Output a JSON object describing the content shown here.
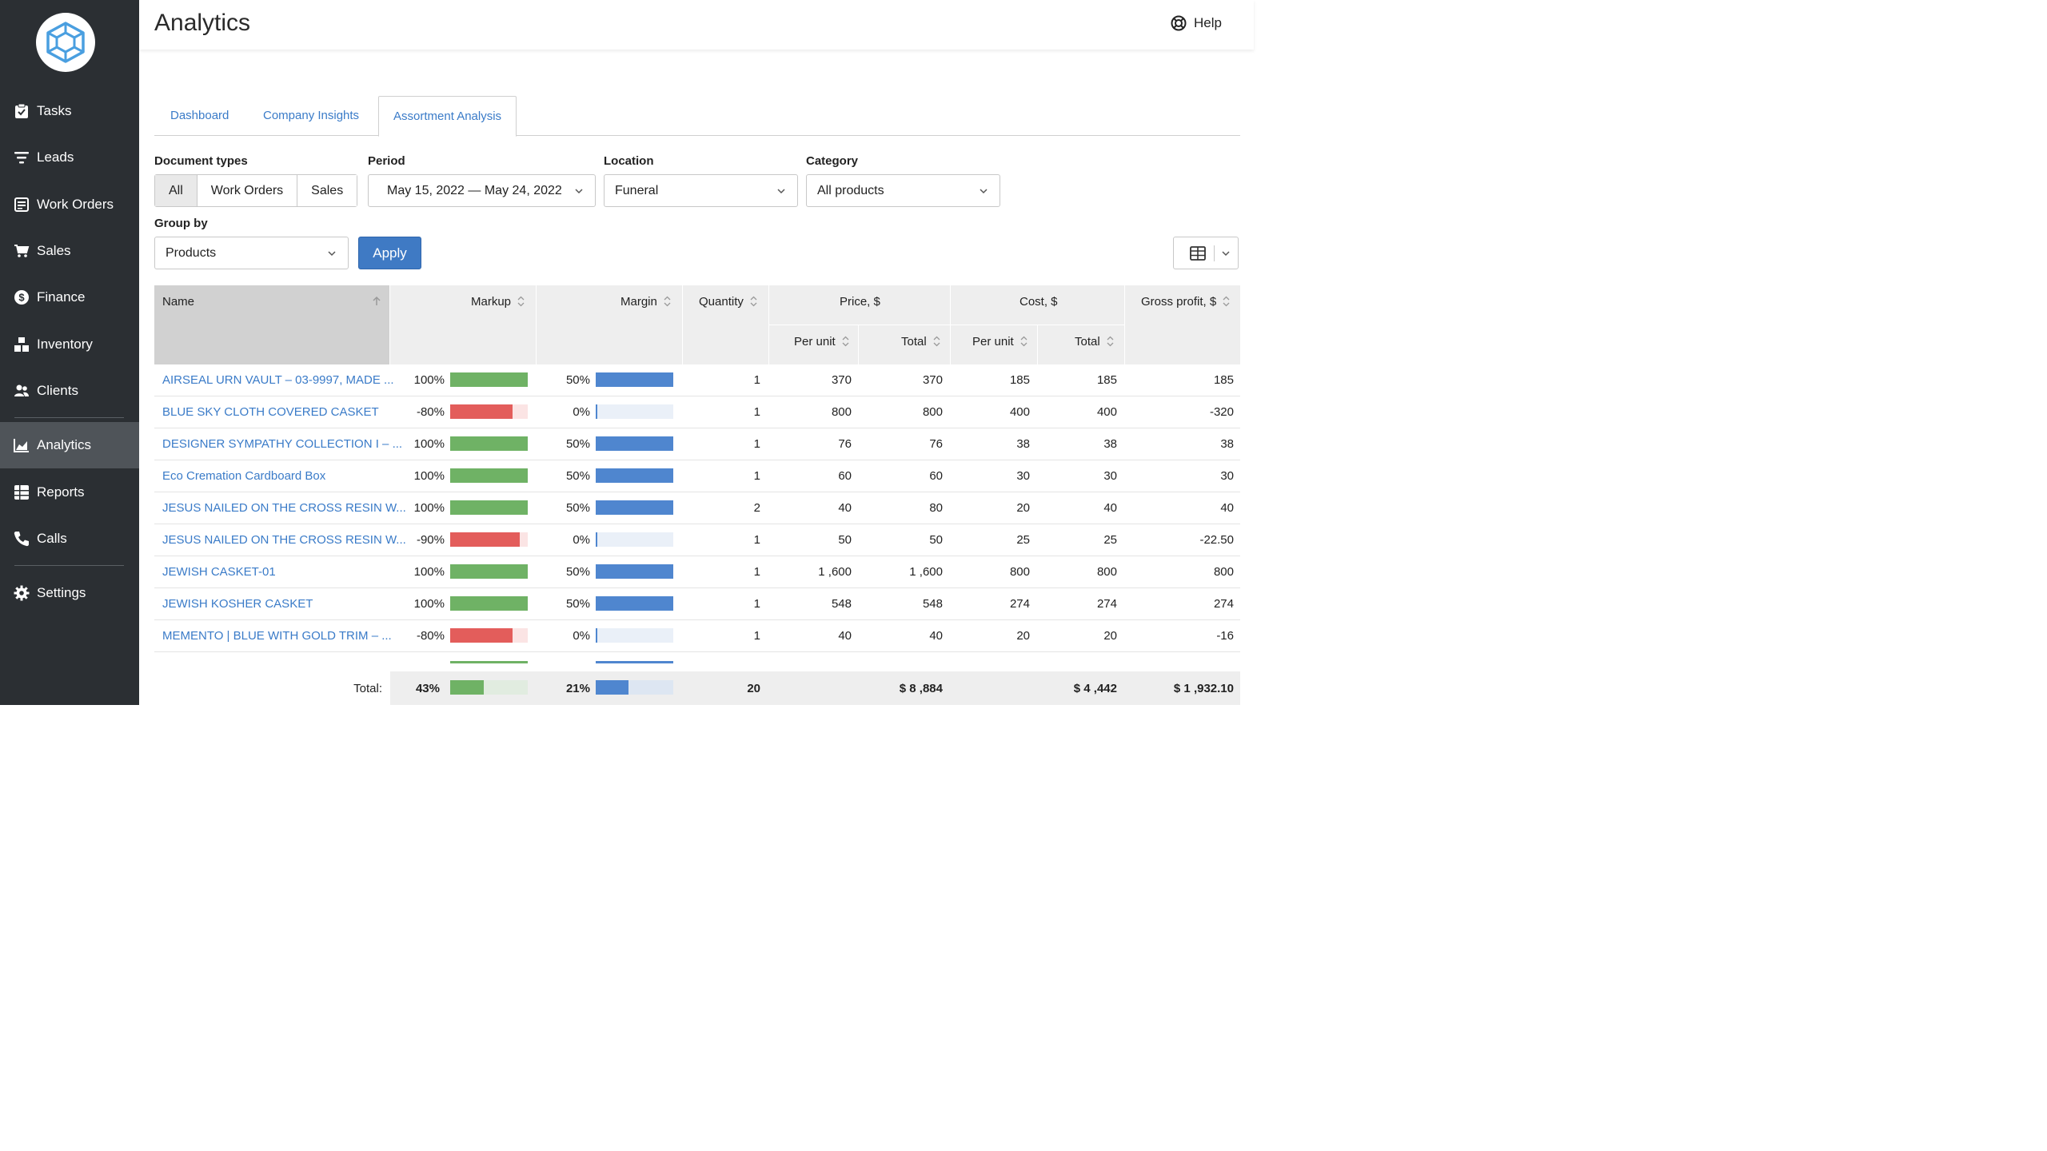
{
  "sidebar": {
    "items": [
      {
        "label": "Tasks",
        "icon": "clipboard-check-icon"
      },
      {
        "label": "Leads",
        "icon": "filter-icon"
      },
      {
        "label": "Work Orders",
        "icon": "document-icon"
      },
      {
        "label": "Sales",
        "icon": "cart-icon"
      },
      {
        "label": "Finance",
        "icon": "dollar-icon"
      },
      {
        "label": "Inventory",
        "icon": "boxes-icon"
      },
      {
        "label": "Clients",
        "icon": "users-icon"
      },
      {
        "label": "Analytics",
        "icon": "chart-area-icon",
        "active": true
      },
      {
        "label": "Reports",
        "icon": "reports-icon"
      },
      {
        "label": "Calls",
        "icon": "phone-icon"
      },
      {
        "label": "Settings",
        "icon": "gear-icon"
      }
    ]
  },
  "header": {
    "title": "Analytics",
    "help": "Help"
  },
  "tabs": [
    "Dashboard",
    "Company Insights",
    "Assortment Analysis"
  ],
  "filters": {
    "doc_types_label": "Document types",
    "doc_types": [
      "All",
      "Work Orders",
      "Sales"
    ],
    "period_label": "Period",
    "period_value": "May 15, 2022 — May 24, 2022",
    "location_label": "Location",
    "location_value": "Funeral",
    "category_label": "Category",
    "category_value": "All products",
    "group_by_label": "Group by",
    "group_by_value": "Products",
    "apply": "Apply"
  },
  "table": {
    "headers": {
      "name": "Name",
      "markup": "Markup",
      "margin": "Margin",
      "quantity": "Quantity",
      "price": "Price, $",
      "cost": "Cost, $",
      "gross": "Gross profit, $",
      "per_unit": "Per unit",
      "total": "Total"
    },
    "rows": [
      {
        "name": "AIRSEAL URN VAULT – 03-9997, MADE ...",
        "markup": "100%",
        "markup_val": 100,
        "margin": "50%",
        "margin_val": 50,
        "qty": "1",
        "price_unit": "370",
        "price_total": "370",
        "cost_unit": "185",
        "cost_total": "185",
        "gross": "185"
      },
      {
        "name": "BLUE SKY CLOTH COVERED CASKET",
        "markup": "-80%",
        "markup_val": -80,
        "margin": "0%",
        "margin_val": 0,
        "qty": "1",
        "price_unit": "800",
        "price_total": "800",
        "cost_unit": "400",
        "cost_total": "400",
        "gross": "-320"
      },
      {
        "name": "DESIGNER SYMPATHY COLLECTION I – ...",
        "markup": "100%",
        "markup_val": 100,
        "margin": "50%",
        "margin_val": 50,
        "qty": "1",
        "price_unit": "76",
        "price_total": "76",
        "cost_unit": "38",
        "cost_total": "38",
        "gross": "38"
      },
      {
        "name": "Eco Cremation Cardboard Box",
        "markup": "100%",
        "markup_val": 100,
        "margin": "50%",
        "margin_val": 50,
        "qty": "1",
        "price_unit": "60",
        "price_total": "60",
        "cost_unit": "30",
        "cost_total": "30",
        "gross": "30"
      },
      {
        "name": "JESUS NAILED ON THE CROSS RESIN W...",
        "markup": "100%",
        "markup_val": 100,
        "margin": "50%",
        "margin_val": 50,
        "qty": "2",
        "price_unit": "40",
        "price_total": "80",
        "cost_unit": "20",
        "cost_total": "40",
        "gross": "40"
      },
      {
        "name": "JESUS NAILED ON THE CROSS RESIN W...",
        "markup": "-90%",
        "markup_val": -90,
        "margin": "0%",
        "margin_val": 0,
        "qty": "1",
        "price_unit": "50",
        "price_total": "50",
        "cost_unit": "25",
        "cost_total": "25",
        "gross": "-22.50"
      },
      {
        "name": "JEWISH CASKET-01",
        "markup": "100%",
        "markup_val": 100,
        "margin": "50%",
        "margin_val": 50,
        "qty": "1",
        "price_unit": "1 ,600",
        "price_total": "1 ,600",
        "cost_unit": "800",
        "cost_total": "800",
        "gross": "800"
      },
      {
        "name": "JEWISH KOSHER CASKET",
        "markup": "100%",
        "markup_val": 100,
        "margin": "50%",
        "margin_val": 50,
        "qty": "1",
        "price_unit": "548",
        "price_total": "548",
        "cost_unit": "274",
        "cost_total": "274",
        "gross": "274"
      },
      {
        "name": "MEMENTO | BLUE WITH GOLD TRIM – ...",
        "markup": "-80%",
        "markup_val": -80,
        "margin": "0%",
        "margin_val": 0,
        "qty": "1",
        "price_unit": "40",
        "price_total": "40",
        "cost_unit": "20",
        "cost_total": "20",
        "gross": "-16"
      }
    ],
    "totals": {
      "label": "Total:",
      "markup": "43%",
      "markup_val": 43,
      "margin": "21%",
      "margin_val": 21,
      "qty": "20",
      "price_total": "$ 8 ,884",
      "cost_total": "$ 4 ,442",
      "gross": "$ 1 ,932.10"
    }
  },
  "colors": {
    "accent": "#3f7ac4",
    "link": "#3a7bc8",
    "bar_green": "#6fb265",
    "bar_red": "#e35d5b",
    "bar_red_bg": "#fbe4e4",
    "bar_blue": "#4f86cf",
    "bar_blue_bg": "#eaf0f8",
    "sidebar": "#2b2f33"
  }
}
